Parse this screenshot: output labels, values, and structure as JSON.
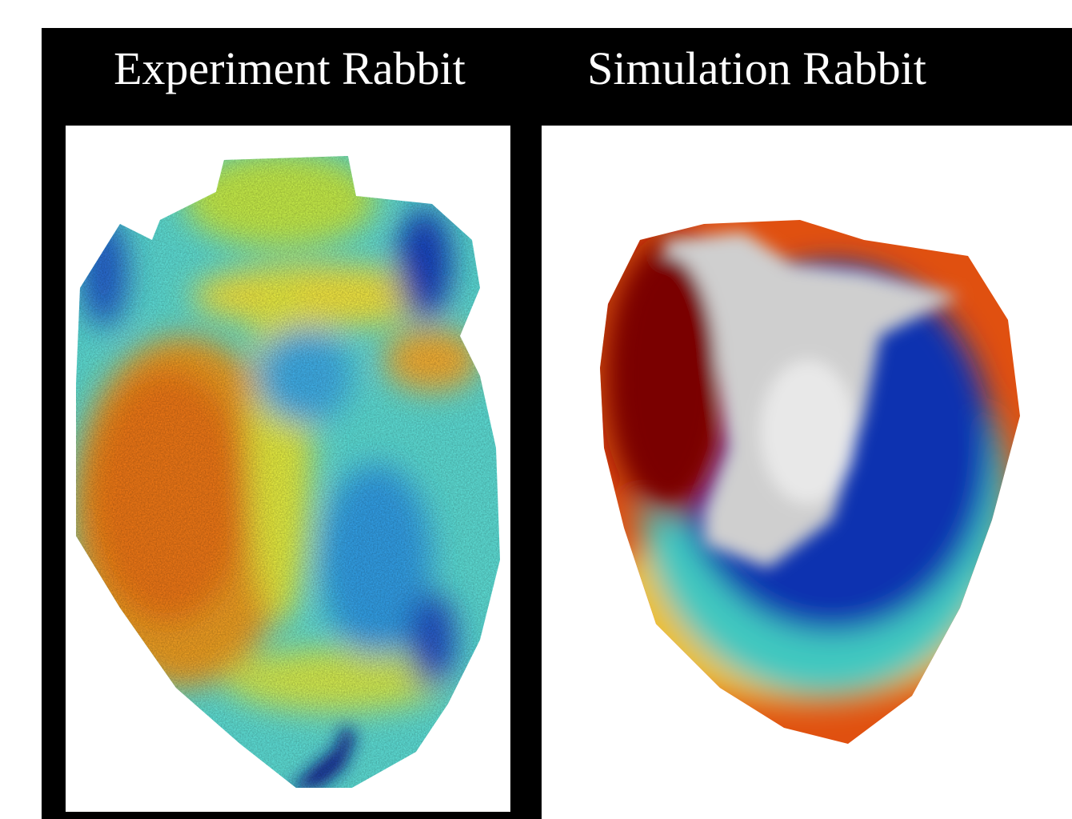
{
  "panels": [
    {
      "title": "Experiment Rabbit"
    },
    {
      "title": "Simulation Rabbit"
    }
  ]
}
